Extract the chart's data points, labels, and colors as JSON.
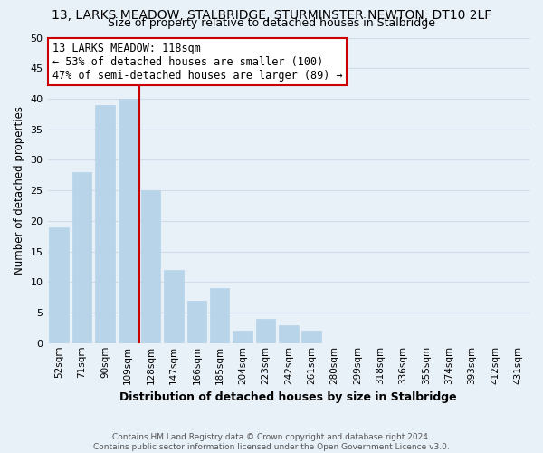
{
  "title": "13, LARKS MEADOW, STALBRIDGE, STURMINSTER NEWTON, DT10 2LF",
  "subtitle": "Size of property relative to detached houses in Stalbridge",
  "xlabel": "Distribution of detached houses by size in Stalbridge",
  "ylabel": "Number of detached properties",
  "bar_labels": [
    "52sqm",
    "71sqm",
    "90sqm",
    "109sqm",
    "128sqm",
    "147sqm",
    "166sqm",
    "185sqm",
    "204sqm",
    "223sqm",
    "242sqm",
    "261sqm",
    "280sqm",
    "299sqm",
    "318sqm",
    "336sqm",
    "355sqm",
    "374sqm",
    "393sqm",
    "412sqm",
    "431sqm"
  ],
  "bar_values": [
    19,
    28,
    39,
    40,
    25,
    12,
    7,
    9,
    2,
    4,
    3,
    2,
    0,
    0,
    0,
    0,
    0,
    0,
    0,
    0,
    0
  ],
  "bar_color": "#b8d4e8",
  "bar_edge_color": "#b8d4e8",
  "vline_x": 3.5,
  "vline_color": "#cc0000",
  "annotation_line1": "13 LARKS MEADOW: 118sqm",
  "annotation_line2": "← 53% of detached houses are smaller (100)",
  "annotation_line3": "47% of semi-detached houses are larger (89) →",
  "annotation_box_color": "#ffffff",
  "annotation_box_edge": "#cc0000",
  "ylim": [
    0,
    50
  ],
  "yticks": [
    0,
    5,
    10,
    15,
    20,
    25,
    30,
    35,
    40,
    45,
    50
  ],
  "grid_color": "#d0dce8",
  "bg_color": "#e8f0f8",
  "footer_line1": "Contains HM Land Registry data © Crown copyright and database right 2024.",
  "footer_line2": "Contains public sector information licensed under the Open Government Licence v3.0.",
  "title_fontsize": 10,
  "subtitle_fontsize": 9,
  "annot_fontsize": 8.5,
  "footer_fontsize": 6.5
}
